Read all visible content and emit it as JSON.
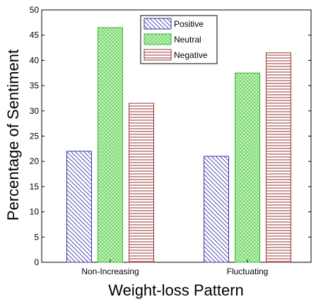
{
  "chart_data": {
    "type": "bar",
    "title": "",
    "xlabel": "Weight-loss Pattern",
    "ylabel": "Percentage of Sentiment",
    "categories": [
      "Non-Increasing",
      "Fluctuating"
    ],
    "ylim": [
      0,
      50
    ],
    "yticks": [
      0,
      5,
      10,
      15,
      20,
      25,
      30,
      35,
      40,
      45,
      50
    ],
    "grid": false,
    "legend_position": "top-center",
    "series": [
      {
        "name": "Positive",
        "values": [
          22.0,
          21.0
        ],
        "color": "#3333aa",
        "fill": "diagonal-hatch"
      },
      {
        "name": "Neutral",
        "values": [
          46.5,
          37.5
        ],
        "color": "#33bb33",
        "fill": "cross-hatch"
      },
      {
        "name": "Negative",
        "values": [
          31.5,
          41.5
        ],
        "color": "#993333",
        "fill": "horizontal-hatch"
      }
    ]
  }
}
